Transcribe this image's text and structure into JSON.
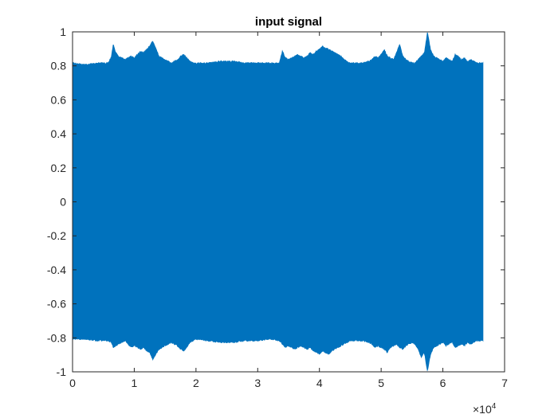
{
  "chart_data": {
    "type": "line",
    "title": "input signal",
    "xlabel": "",
    "ylabel": "",
    "xlim": [
      0,
      70000
    ],
    "ylim": [
      -1,
      1
    ],
    "x_ticks": [
      0,
      10000,
      20000,
      30000,
      40000,
      50000,
      60000,
      70000
    ],
    "x_tick_labels": [
      "0",
      "1",
      "2",
      "3",
      "4",
      "5",
      "6",
      "7"
    ],
    "x_exponent_label": "×10",
    "x_exponent_power": "4",
    "y_ticks": [
      -1,
      -0.8,
      -0.6,
      -0.4,
      -0.2,
      0,
      0.2,
      0.4,
      0.6,
      0.8,
      1
    ],
    "y_tick_labels": [
      "-1",
      "-0.8",
      "-0.6",
      "-0.4",
      "-0.2",
      "0",
      "0.2",
      "0.4",
      "0.6",
      "0.8",
      "1"
    ],
    "grid": false,
    "series_color": "#0072BD",
    "series": [
      {
        "x_range": [
          0,
          66500
        ],
        "envelope_x": [
          0,
          2000,
          4000,
          5800,
          6300,
          6600,
          7000,
          7500,
          8000,
          8500,
          9000,
          9500,
          10000,
          10500,
          11000,
          11500,
          12000,
          12500,
          13000,
          13500,
          14000,
          14500,
          15000,
          15500,
          16000,
          16500,
          17000,
          17500,
          18000,
          18500,
          19000,
          19500,
          20000,
          22000,
          24000,
          26000,
          28000,
          30000,
          32000,
          33500,
          34000,
          34500,
          35000,
          35500,
          36000,
          36500,
          37000,
          37500,
          38000,
          38500,
          39000,
          39500,
          40000,
          40500,
          41000,
          41500,
          42000,
          42500,
          43000,
          43500,
          44000,
          44500,
          45000,
          46000,
          47000,
          48000,
          48500,
          49000,
          49500,
          50000,
          50500,
          51000,
          51500,
          52000,
          52500,
          53000,
          53500,
          54000,
          54500,
          55000,
          55500,
          56000,
          56500,
          57000,
          57500,
          58000,
          58500,
          59000,
          59500,
          60000,
          60500,
          61000,
          61500,
          62000,
          62500,
          63000,
          63500,
          64000,
          64500,
          65000,
          65500,
          66000,
          66500
        ],
        "upper": [
          0.82,
          0.81,
          0.82,
          0.82,
          0.86,
          0.93,
          0.88,
          0.86,
          0.85,
          0.84,
          0.85,
          0.86,
          0.85,
          0.87,
          0.89,
          0.88,
          0.9,
          0.92,
          0.95,
          0.91,
          0.86,
          0.85,
          0.84,
          0.83,
          0.82,
          0.83,
          0.84,
          0.86,
          0.87,
          0.85,
          0.83,
          0.82,
          0.82,
          0.82,
          0.83,
          0.83,
          0.82,
          0.82,
          0.82,
          0.82,
          0.89,
          0.85,
          0.84,
          0.85,
          0.86,
          0.87,
          0.86,
          0.85,
          0.86,
          0.88,
          0.87,
          0.89,
          0.9,
          0.92,
          0.91,
          0.9,
          0.89,
          0.88,
          0.87,
          0.86,
          0.84,
          0.83,
          0.82,
          0.82,
          0.82,
          0.83,
          0.84,
          0.86,
          0.85,
          0.87,
          0.9,
          0.86,
          0.85,
          0.84,
          0.88,
          0.93,
          0.86,
          0.84,
          0.83,
          0.82,
          0.82,
          0.84,
          0.86,
          0.88,
          1.0,
          0.9,
          0.86,
          0.85,
          0.84,
          0.83,
          0.85,
          0.84,
          0.83,
          0.87,
          0.86,
          0.84,
          0.85,
          0.83,
          0.84,
          0.83,
          0.82,
          0.82,
          0.82
        ],
        "lower": [
          -0.81,
          -0.81,
          -0.82,
          -0.82,
          -0.83,
          -0.86,
          -0.85,
          -0.84,
          -0.83,
          -0.82,
          -0.84,
          -0.86,
          -0.85,
          -0.86,
          -0.87,
          -0.86,
          -0.88,
          -0.89,
          -0.93,
          -0.9,
          -0.87,
          -0.86,
          -0.85,
          -0.84,
          -0.83,
          -0.84,
          -0.85,
          -0.87,
          -0.88,
          -0.86,
          -0.83,
          -0.82,
          -0.81,
          -0.82,
          -0.83,
          -0.83,
          -0.82,
          -0.82,
          -0.81,
          -0.82,
          -0.84,
          -0.86,
          -0.85,
          -0.86,
          -0.87,
          -0.86,
          -0.85,
          -0.86,
          -0.87,
          -0.86,
          -0.88,
          -0.89,
          -0.9,
          -0.88,
          -0.89,
          -0.9,
          -0.88,
          -0.87,
          -0.86,
          -0.85,
          -0.84,
          -0.83,
          -0.82,
          -0.82,
          -0.82,
          -0.83,
          -0.84,
          -0.86,
          -0.85,
          -0.86,
          -0.87,
          -0.89,
          -0.86,
          -0.85,
          -0.84,
          -0.86,
          -0.87,
          -0.85,
          -0.84,
          -0.83,
          -0.84,
          -0.87,
          -0.92,
          -0.89,
          -1.0,
          -0.9,
          -0.86,
          -0.85,
          -0.84,
          -0.83,
          -0.85,
          -0.84,
          -0.83,
          -0.86,
          -0.85,
          -0.84,
          -0.85,
          -0.83,
          -0.84,
          -0.83,
          -0.82,
          -0.82,
          -0.82
        ]
      }
    ]
  }
}
